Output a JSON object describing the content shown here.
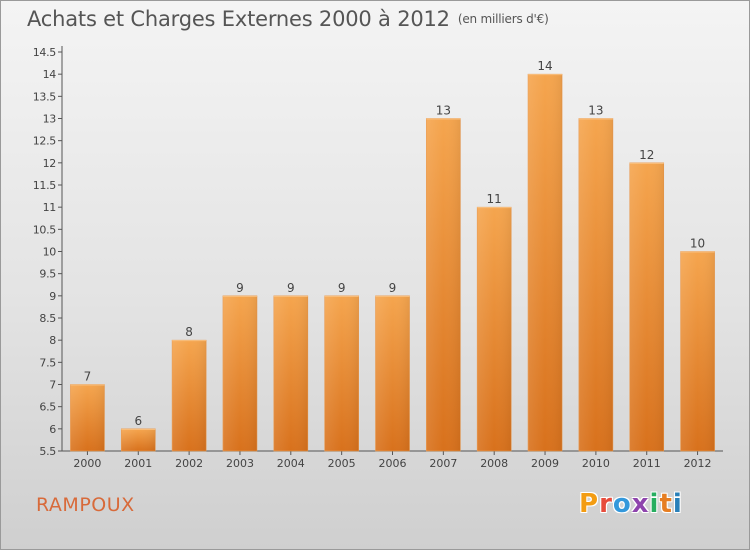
{
  "header": {
    "title": "Achats et Charges Externes 2000 à 2012",
    "unit": "(en milliers d'€)"
  },
  "footer": {
    "commune": "RAMPOUX",
    "logo_text": "Proxiti"
  },
  "colors": {
    "bar_top": "#f5a54e",
    "bar_bottom": "#d8711c",
    "commune": "#d86a3a",
    "logo_letters": [
      "#f39c12",
      "#e74c3c",
      "#3498db",
      "#8e44ad",
      "#27ae60",
      "#e67e22",
      "#2980b9"
    ]
  },
  "chart_data": {
    "type": "bar",
    "title": "Achats et Charges Externes 2000 à 2012",
    "xlabel": "",
    "ylabel": "",
    "categories": [
      "2000",
      "2001",
      "2002",
      "2003",
      "2004",
      "2005",
      "2006",
      "2007",
      "2008",
      "2009",
      "2010",
      "2011",
      "2012"
    ],
    "values": [
      7,
      6,
      8,
      9,
      9,
      9,
      9,
      13,
      11,
      14,
      13,
      12,
      10
    ],
    "ylim": [
      5.5,
      14.5
    ],
    "yticks": [
      "5.5",
      "6",
      "6.5",
      "7",
      "7.5",
      "8",
      "8.5",
      "9",
      "9.5",
      "10",
      "10.5",
      "11",
      "11.5",
      "12",
      "12.5",
      "13",
      "13.5",
      "14",
      "14.5"
    ],
    "grid": false,
    "legend": "none"
  }
}
